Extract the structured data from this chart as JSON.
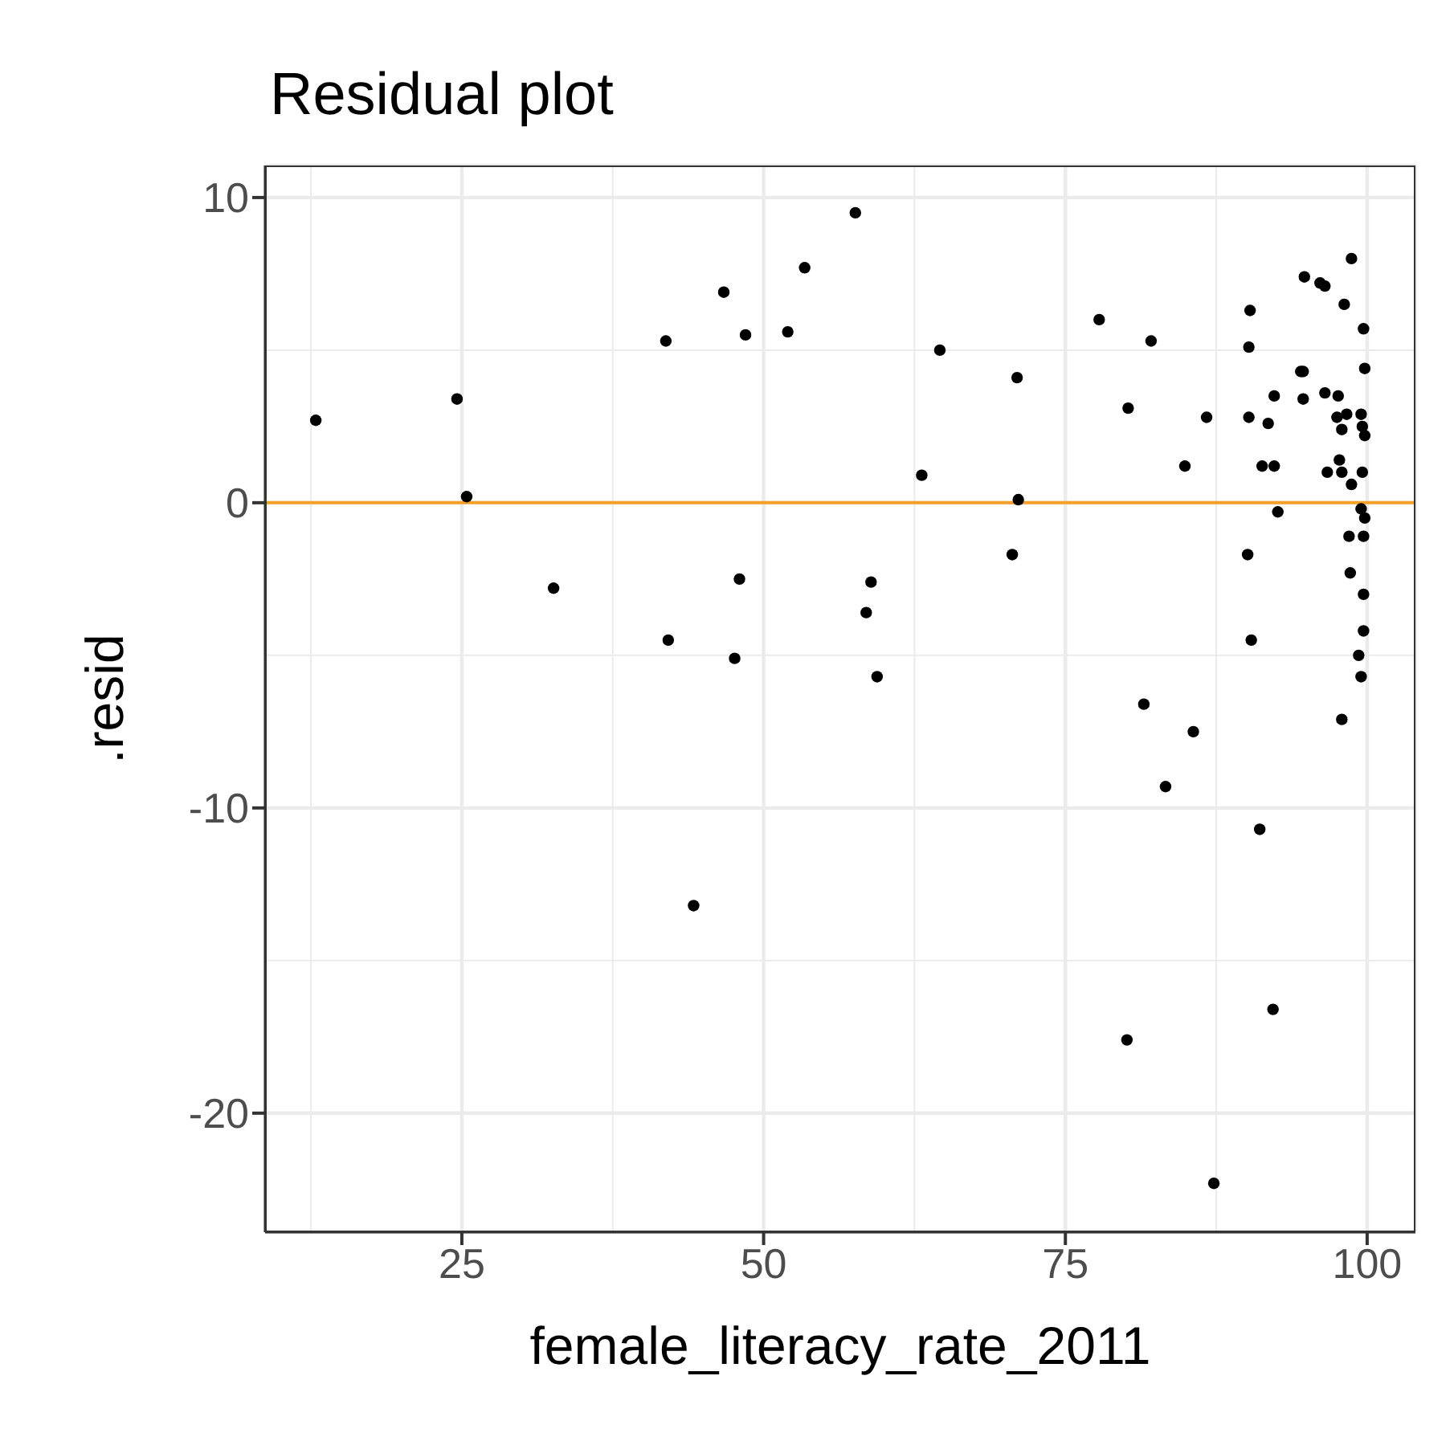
{
  "chart_data": {
    "type": "scatter",
    "title": "Residual plot",
    "xlabel": "female_literacy_rate_2011",
    "ylabel": ".resid",
    "x": [
      12.9,
      24.6,
      25.4,
      32.6,
      41.9,
      46.7,
      48.5,
      52.0,
      53.4,
      42.1,
      48.0,
      47.6,
      44.2,
      57.6,
      64.6,
      71.0,
      63.1,
      71.1,
      70.6,
      58.9,
      58.5,
      59.4,
      77.8,
      82.1,
      80.2,
      86.7,
      84.9,
      81.5,
      85.6,
      83.3,
      80.1,
      87.3,
      90.3,
      90.2,
      90.2,
      91.8,
      92.3,
      91.3,
      92.3,
      92.6,
      90.1,
      90.4,
      91.1,
      92.2,
      94.8,
      94.5,
      94.7,
      94.7,
      96.5,
      97.6,
      96.1,
      96.5,
      98.1,
      98.7,
      99.7,
      99.8,
      97.5,
      98.3,
      99.5,
      97.9,
      99.6,
      99.8,
      97.7,
      96.7,
      97.9,
      99.6,
      98.7,
      99.5,
      99.8,
      98.5,
      99.7,
      98.6,
      99.7,
      99.7,
      99.3,
      99.5,
      97.9
    ],
    "series": [
      {
        "color": "#000000",
        "values": [
          2.7,
          3.4,
          0.2,
          -2.8,
          5.3,
          6.9,
          5.5,
          5.6,
          7.7,
          -4.5,
          -2.5,
          -5.1,
          -13.2,
          9.5,
          5.0,
          4.1,
          0.9,
          0.1,
          -1.7,
          -2.6,
          -3.6,
          -5.7,
          6.0,
          5.3,
          3.1,
          2.8,
          1.2,
          -6.6,
          -7.5,
          -9.3,
          -17.6,
          -22.3,
          6.3,
          5.1,
          2.8,
          2.6,
          3.5,
          1.2,
          1.2,
          -0.3,
          -1.7,
          -4.5,
          -10.7,
          -16.6,
          7.4,
          4.3,
          4.3,
          3.4,
          3.6,
          3.5,
          7.2,
          7.1,
          6.5,
          8.0,
          5.7,
          4.4,
          2.8,
          2.9,
          2.9,
          2.4,
          2.5,
          2.2,
          1.4,
          1.0,
          1.0,
          1.0,
          0.6,
          -0.2,
          -0.5,
          -1.1,
          -1.1,
          -2.3,
          -3.0,
          -4.2,
          -5.0,
          -5.7,
          -7.1
        ]
      }
    ],
    "xlim": [
      8.7,
      104.0
    ],
    "ylim": [
      -23.9,
      11.05
    ],
    "xticks": [
      25,
      50,
      75,
      100
    ],
    "yticks": [
      -20,
      -10,
      0,
      10
    ],
    "grid": true,
    "marker": "circle",
    "ref_lines": [
      {
        "axis": "y",
        "value": 0,
        "color": "#f5a02a",
        "line_style": "solid"
      }
    ]
  }
}
